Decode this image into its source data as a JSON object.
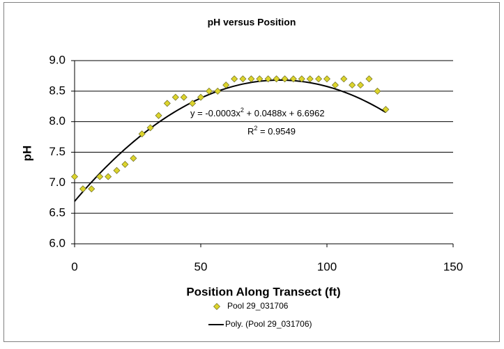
{
  "chart_data": {
    "type": "scatter",
    "title": "pH versus Position",
    "x_label": "Position Along Transect (ft)",
    "y_label": "pH",
    "xlim": [
      0,
      150
    ],
    "xticks": [
      0,
      50,
      100,
      150
    ],
    "ylim": [
      6.0,
      9.0
    ],
    "yticks": [
      {
        "value": 6.0,
        "label": "6.0"
      },
      {
        "value": 6.5,
        "label": "6.5"
      },
      {
        "value": 7.0,
        "label": "7.0"
      },
      {
        "value": 7.5,
        "label": "7.5"
      },
      {
        "value": 8.0,
        "label": "8.0"
      },
      {
        "value": 8.5,
        "label": "8.5"
      },
      {
        "value": 9.0,
        "label": "9.0"
      }
    ],
    "grid": true,
    "legend": "bottom",
    "series": [
      {
        "name": "Pool 29_031706",
        "color": "#dcd42c",
        "x": [
          0,
          3.3,
          6.7,
          10,
          13.3,
          16.7,
          20,
          23.3,
          26.7,
          30,
          33.3,
          36.7,
          40,
          43.3,
          46.7,
          50,
          53.3,
          56.7,
          60,
          63.3,
          66.7,
          70,
          73.3,
          76.7,
          80,
          83.3,
          86.7,
          90,
          93.3,
          96.7,
          100,
          103.3,
          106.7,
          110,
          113.3,
          116.7,
          120,
          123.3
        ],
        "values": [
          7.1,
          6.9,
          6.9,
          7.1,
          7.1,
          7.2,
          7.3,
          7.4,
          7.8,
          7.9,
          8.1,
          8.3,
          8.4,
          8.4,
          8.3,
          8.4,
          8.5,
          8.5,
          8.6,
          8.7,
          8.7,
          8.7,
          8.7,
          8.7,
          8.7,
          8.7,
          8.7,
          8.7,
          8.7,
          8.7,
          8.7,
          8.6,
          8.7,
          8.6,
          8.6,
          8.7,
          8.5,
          8.2
        ]
      }
    ],
    "trendline": {
      "name": "Poly. (Pool 29_031706)",
      "color": "#000000",
      "coefficients": [
        -0.0003,
        0.0488,
        6.6962
      ],
      "equation": [
        "y = -0.0003x",
        "2",
        " + 0.0488x + 6.6962"
      ],
      "r_squared": [
        "R",
        "2",
        " = 0.9549"
      ]
    }
  }
}
